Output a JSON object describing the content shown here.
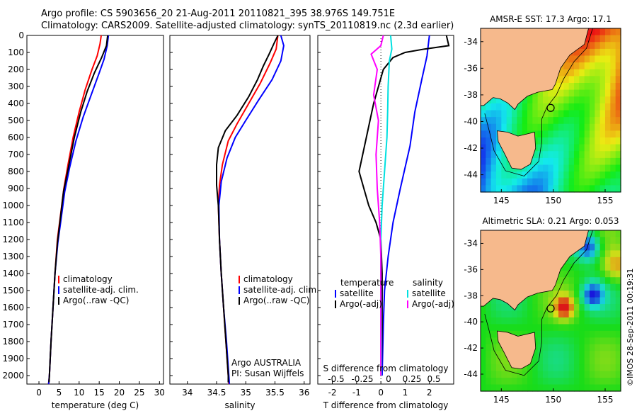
{
  "header": {
    "line1": "Argo profile: CS 5903656_20 21-Aug-2011 20110821_395 38.976S 149.751E",
    "line2": "Climatology: CARS2009. Satellite-adjusted climatology: synTS_20110819.nc (2.3d earlier)"
  },
  "stamp": "©IMOS 28-Sep-2011 00:19:31",
  "colors": {
    "climatology": "#ff0000",
    "satellite": "#0000ff",
    "argo": "#000000",
    "sal_satellite": "#00e0e0",
    "sal_argo": "#ff00ff",
    "land": "#f6b98c"
  },
  "chart_data": [
    {
      "type": "line",
      "xlabel": "temperature (deg C)",
      "ylabel": "",
      "xlim": [
        -3,
        31
      ],
      "ylim": [
        2050,
        0
      ],
      "xticks": [
        "0",
        "5",
        "10",
        "15",
        "20",
        "25",
        "30"
      ],
      "yticks": [
        "0",
        "100",
        "200",
        "300",
        "400",
        "500",
        "600",
        "700",
        "800",
        "900",
        "1000",
        "1100",
        "1200",
        "1300",
        "1400",
        "1500",
        "1600",
        "1700",
        "1800",
        "1900",
        "2000"
      ],
      "legend": [
        "climatology",
        "satellite-adj. clim.",
        "Argo(..raw -QC)"
      ],
      "series": [
        {
          "name": "climatology",
          "color": "#ff0000",
          "points": [
            [
              15.5,
              0
            ],
            [
              15.2,
              50
            ],
            [
              14.5,
              120
            ],
            [
              13.2,
              200
            ],
            [
              11.5,
              320
            ],
            [
              10.0,
              450
            ],
            [
              8.5,
              600
            ],
            [
              7.3,
              750
            ],
            [
              6.2,
              900
            ],
            [
              5.4,
              1050
            ],
            [
              4.6,
              1200
            ],
            [
              4.0,
              1400
            ],
            [
              3.5,
              1600
            ],
            [
              3.0,
              1800
            ],
            [
              2.6,
              2000
            ],
            [
              2.4,
              2050
            ]
          ]
        },
        {
          "name": "satellite-adj. clim.",
          "color": "#0000ff",
          "points": [
            [
              17.3,
              0
            ],
            [
              17.0,
              60
            ],
            [
              16.2,
              140
            ],
            [
              15.0,
              220
            ],
            [
              13.0,
              350
            ],
            [
              11.0,
              480
            ],
            [
              9.2,
              620
            ],
            [
              7.6,
              780
            ],
            [
              6.4,
              920
            ],
            [
              5.5,
              1080
            ],
            [
              4.7,
              1220
            ],
            [
              4.0,
              1400
            ],
            [
              3.5,
              1600
            ],
            [
              3.0,
              1800
            ],
            [
              2.6,
              2000
            ],
            [
              2.4,
              2050
            ]
          ]
        },
        {
          "name": "Argo(..raw -QC)",
          "color": "#000000",
          "points": [
            [
              17.1,
              0
            ],
            [
              16.8,
              60
            ],
            [
              15.6,
              130
            ],
            [
              13.8,
              220
            ],
            [
              12.0,
              330
            ],
            [
              10.4,
              450
            ],
            [
              8.8,
              600
            ],
            [
              7.3,
              780
            ],
            [
              6.1,
              920
            ],
            [
              5.3,
              1080
            ],
            [
              4.6,
              1220
            ],
            [
              4.0,
              1400
            ],
            [
              3.5,
              1600
            ],
            [
              3.0,
              1800
            ],
            [
              2.6,
              2000
            ],
            [
              2.5,
              2040
            ]
          ]
        }
      ]
    },
    {
      "type": "line",
      "xlabel": "salinity",
      "xlim": [
        33.7,
        36.1
      ],
      "ylim": [
        2050,
        0
      ],
      "xticks": [
        "34",
        "34.5",
        "35",
        "35.5",
        "36"
      ],
      "legend": [
        "climatology",
        "satellite-adj. clim.",
        "Argo(..raw -QC)"
      ],
      "annotation": [
        "Argo AUSTRALIA",
        "PI: Susan Wijffels"
      ],
      "series": [
        {
          "name": "climatology",
          "color": "#ff0000",
          "points": [
            [
              35.55,
              0
            ],
            [
              35.52,
              80
            ],
            [
              35.42,
              160
            ],
            [
              35.25,
              280
            ],
            [
              35.05,
              400
            ],
            [
              34.85,
              520
            ],
            [
              34.7,
              620
            ],
            [
              34.6,
              760
            ],
            [
              34.55,
              880
            ],
            [
              34.53,
              1000
            ],
            [
              34.55,
              1200
            ],
            [
              34.58,
              1400
            ],
            [
              34.62,
              1600
            ],
            [
              34.66,
              1800
            ],
            [
              34.7,
              2000
            ],
            [
              34.71,
              2050
            ]
          ]
        },
        {
          "name": "satellite-adj. clim.",
          "color": "#0000ff",
          "points": [
            [
              35.6,
              0
            ],
            [
              35.65,
              60
            ],
            [
              35.6,
              150
            ],
            [
              35.45,
              260
            ],
            [
              35.22,
              380
            ],
            [
              35.0,
              500
            ],
            [
              34.82,
              600
            ],
            [
              34.68,
              720
            ],
            [
              34.58,
              860
            ],
            [
              34.54,
              1000
            ],
            [
              34.55,
              1200
            ],
            [
              34.58,
              1400
            ],
            [
              34.62,
              1600
            ],
            [
              34.67,
              1800
            ],
            [
              34.71,
              2000
            ],
            [
              34.72,
              2050
            ]
          ]
        },
        {
          "name": "Argo(..raw -QC)",
          "color": "#000000",
          "points": [
            [
              35.55,
              0
            ],
            [
              35.48,
              50
            ],
            [
              35.4,
              110
            ],
            [
              35.3,
              180
            ],
            [
              35.2,
              260
            ],
            [
              35.05,
              360
            ],
            [
              34.85,
              470
            ],
            [
              34.65,
              560
            ],
            [
              34.53,
              660
            ],
            [
              34.5,
              760
            ],
            [
              34.5,
              880
            ],
            [
              34.53,
              1000
            ],
            [
              34.55,
              1200
            ],
            [
              34.58,
              1400
            ],
            [
              34.62,
              1600
            ],
            [
              34.66,
              1800
            ],
            [
              34.7,
              2000
            ],
            [
              34.7,
              2040
            ]
          ]
        }
      ]
    },
    {
      "type": "line",
      "xlabel": "T difference from climatology",
      "xlabel_top": "S difference from climatology",
      "xlim": [
        -2.6,
        3.0
      ],
      "ylim": [
        2050,
        0
      ],
      "xticks": [
        "-2",
        "-1",
        "0",
        "1",
        "2"
      ],
      "xticks_top": [
        "-0.5",
        "-0.25",
        "0",
        "0.25",
        "0.5"
      ],
      "legend_left_title": "temperature",
      "legend_left": [
        "satellite",
        "Argo(-adj)"
      ],
      "legend_right_title": "salinity",
      "legend_right": [
        "satellite",
        "Argo(-adj)"
      ],
      "series": [
        {
          "name": "satellite",
          "color": "#0000ff",
          "points": [
            [
              2.0,
              0
            ],
            [
              1.9,
              120
            ],
            [
              1.7,
              250
            ],
            [
              1.4,
              450
            ],
            [
              1.2,
              650
            ],
            [
              0.8,
              900
            ],
            [
              0.5,
              1100
            ],
            [
              0.3,
              1300
            ],
            [
              0.15,
              1500
            ],
            [
              0.1,
              1700
            ],
            [
              0.05,
              2000
            ]
          ]
        },
        {
          "name": "Argo(-adj)",
          "color": "#000000",
          "points": [
            [
              2.7,
              0
            ],
            [
              2.8,
              60
            ],
            [
              1.8,
              80
            ],
            [
              1.0,
              100
            ],
            [
              0.5,
              130
            ],
            [
              0.1,
              200
            ],
            [
              -0.3,
              400
            ],
            [
              -0.6,
              600
            ],
            [
              -0.9,
              800
            ],
            [
              -0.7,
              900
            ],
            [
              -0.5,
              1000
            ],
            [
              -0.2,
              1100
            ],
            [
              0.0,
              1200
            ],
            [
              0.05,
              1400
            ],
            [
              0.05,
              1700
            ],
            [
              0.02,
              2000
            ]
          ]
        },
        {
          "name": "satellite",
          "color": "#00e0e0",
          "points": [
            [
              0.4,
              0
            ],
            [
              0.45,
              80
            ],
            [
              0.35,
              150
            ],
            [
              0.3,
              300
            ],
            [
              0.28,
              450
            ],
            [
              0.25,
              600
            ],
            [
              0.15,
              800
            ],
            [
              0.05,
              1000
            ],
            [
              0.0,
              1200
            ],
            [
              0.0,
              1400
            ],
            [
              0.02,
              1800
            ],
            [
              0.02,
              2000
            ]
          ]
        },
        {
          "name": "Argo(-adj)",
          "color": "#ff00ff",
          "points": [
            [
              0.1,
              0
            ],
            [
              0.0,
              60
            ],
            [
              -0.4,
              110
            ],
            [
              -0.15,
              200
            ],
            [
              -0.3,
              350
            ],
            [
              -0.1,
              500
            ],
            [
              -0.2,
              700
            ],
            [
              -0.15,
              900
            ],
            [
              -0.05,
              1100
            ],
            [
              0.0,
              1300
            ],
            [
              0.0,
              1600
            ],
            [
              0.0,
              2000
            ]
          ]
        }
      ]
    },
    {
      "type": "heatmap",
      "title": "AMSR-E SST: 17.3 Argo: 17.1",
      "xticks": [
        "145",
        "150",
        "155"
      ],
      "yticks": [
        "-34",
        "-36",
        "-38",
        "-40",
        "-42",
        "-44"
      ],
      "xlim": [
        143,
        156.5
      ],
      "ylim": [
        -45.3,
        -33.0
      ],
      "marker": [
        149.751,
        -38.976
      ]
    },
    {
      "type": "heatmap",
      "title": "Altimetric SLA: 0.21 Argo: 0.053",
      "xticks": [
        "145",
        "150",
        "155"
      ],
      "yticks": [
        "-34",
        "-36",
        "-38",
        "-40",
        "-42",
        "-44"
      ],
      "xlim": [
        143,
        156.5
      ],
      "ylim": [
        -45.3,
        -33.0
      ],
      "marker": [
        149.751,
        -38.976
      ]
    }
  ]
}
